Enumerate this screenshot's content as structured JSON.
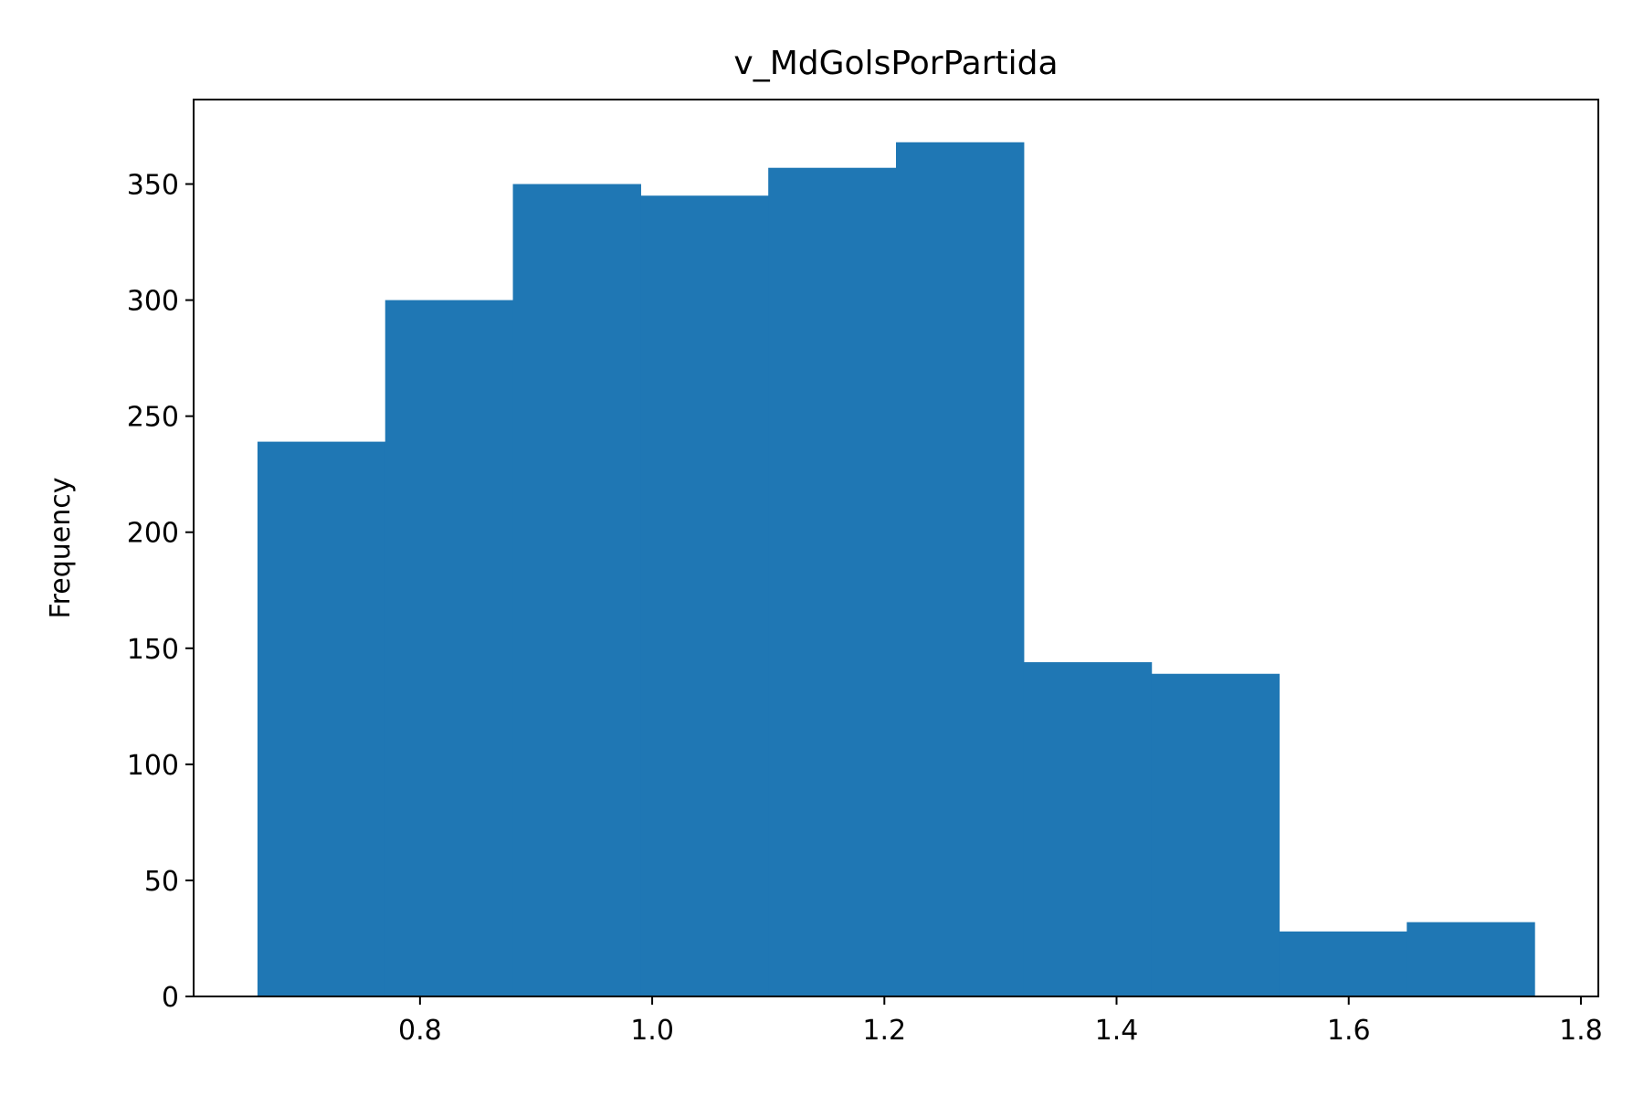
{
  "chart_data": {
    "type": "bar",
    "subtype": "histogram",
    "title": "v_MdGolsPorPartida",
    "xlabel": "",
    "ylabel": "Frequency",
    "bins": [
      {
        "x0": 0.66,
        "x1": 0.77,
        "count": 239
      },
      {
        "x0": 0.77,
        "x1": 0.88,
        "count": 300
      },
      {
        "x0": 0.88,
        "x1": 0.99,
        "count": 350
      },
      {
        "x0": 0.99,
        "x1": 1.1,
        "count": 345
      },
      {
        "x0": 1.1,
        "x1": 1.21,
        "count": 357
      },
      {
        "x0": 1.21,
        "x1": 1.32,
        "count": 368
      },
      {
        "x0": 1.32,
        "x1": 1.43,
        "count": 144
      },
      {
        "x0": 1.43,
        "x1": 1.54,
        "count": 139
      },
      {
        "x0": 1.54,
        "x1": 1.65,
        "count": 28
      },
      {
        "x0": 1.65,
        "x1": 1.76,
        "count": 32
      }
    ],
    "xlim": [
      0.605,
      1.815
    ],
    "ylim": [
      0,
      386.4
    ],
    "xticks": [
      0.8,
      1.0,
      1.2,
      1.4,
      1.6,
      1.8
    ],
    "xtick_labels": [
      "0.8",
      "1.0",
      "1.2",
      "1.4",
      "1.6",
      "1.8"
    ],
    "yticks": [
      0,
      50,
      100,
      150,
      200,
      250,
      300,
      350
    ],
    "ytick_labels": [
      "0",
      "50",
      "100",
      "150",
      "200",
      "250",
      "300",
      "350"
    ],
    "bar_color": "#1f77b4",
    "grid": false,
    "legend": "none"
  }
}
